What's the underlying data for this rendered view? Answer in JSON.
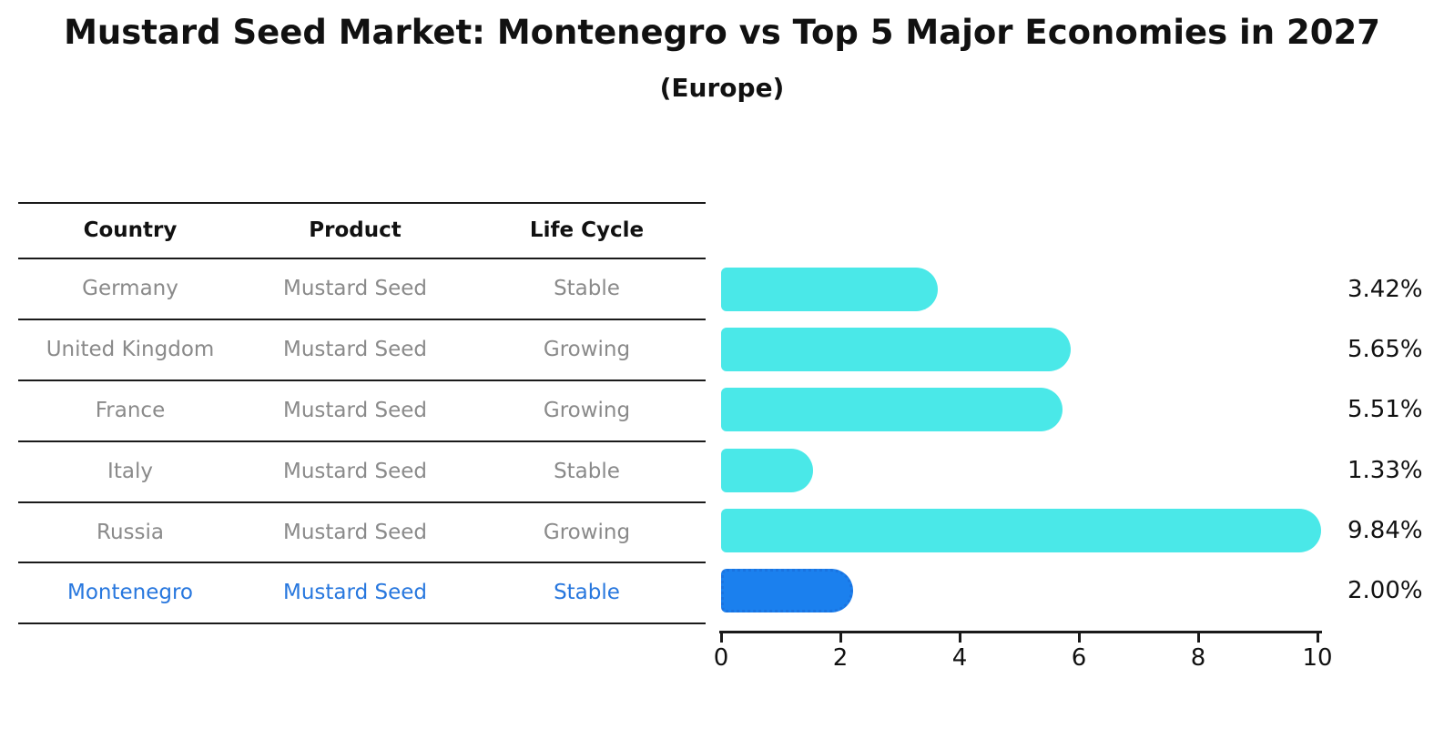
{
  "title": "Mustard Seed Market: Montenegro vs Top 5 Major Economies in 2027",
  "subtitle": "(Europe)",
  "table": {
    "headers": [
      "Country",
      "Product",
      "Life Cycle"
    ],
    "rows": [
      {
        "country": "Germany",
        "product": "Mustard Seed",
        "life_cycle": "Stable",
        "highlight": false
      },
      {
        "country": "United Kingdom",
        "product": "Mustard Seed",
        "life_cycle": "Growing",
        "highlight": false
      },
      {
        "country": "France",
        "product": "Mustard Seed",
        "life_cycle": "Growing",
        "highlight": false
      },
      {
        "country": "Italy",
        "product": "Mustard Seed",
        "life_cycle": "Stable",
        "highlight": false
      },
      {
        "country": "Russia",
        "product": "Mustard Seed",
        "life_cycle": "Growing",
        "highlight": false
      },
      {
        "country": "Montenegro",
        "product": "Mustard Seed",
        "life_cycle": "Stable",
        "highlight": true
      }
    ]
  },
  "chart_data": {
    "type": "bar",
    "orientation": "horizontal",
    "title": "Mustard Seed Market: Montenegro vs Top 5 Major Economies in 2027 (Europe)",
    "categories": [
      "Germany",
      "United Kingdom",
      "France",
      "Italy",
      "Russia",
      "Montenegro"
    ],
    "values": [
      3.42,
      5.65,
      5.51,
      1.33,
      9.84,
      2.0
    ],
    "value_labels": [
      "3.42%",
      "5.65%",
      "5.51%",
      "1.33%",
      "9.84%",
      "2.00%"
    ],
    "xlim": [
      0,
      10
    ],
    "x_ticks": [
      0,
      2,
      4,
      6,
      8,
      10
    ],
    "x_tick_labels": [
      "0",
      "2",
      "4",
      "6",
      "8",
      "10"
    ],
    "grid": false,
    "legend": "none",
    "bar_color": "#4AE8E8",
    "highlight_index": 5,
    "highlight_color": "#1B80EE",
    "highlight_border_color": "#1A73E0"
  },
  "colors": {
    "header_text": "#111111",
    "row_text": "#8a8a8a",
    "highlight_text": "#2777DE",
    "axis": "#1a1a1a"
  }
}
